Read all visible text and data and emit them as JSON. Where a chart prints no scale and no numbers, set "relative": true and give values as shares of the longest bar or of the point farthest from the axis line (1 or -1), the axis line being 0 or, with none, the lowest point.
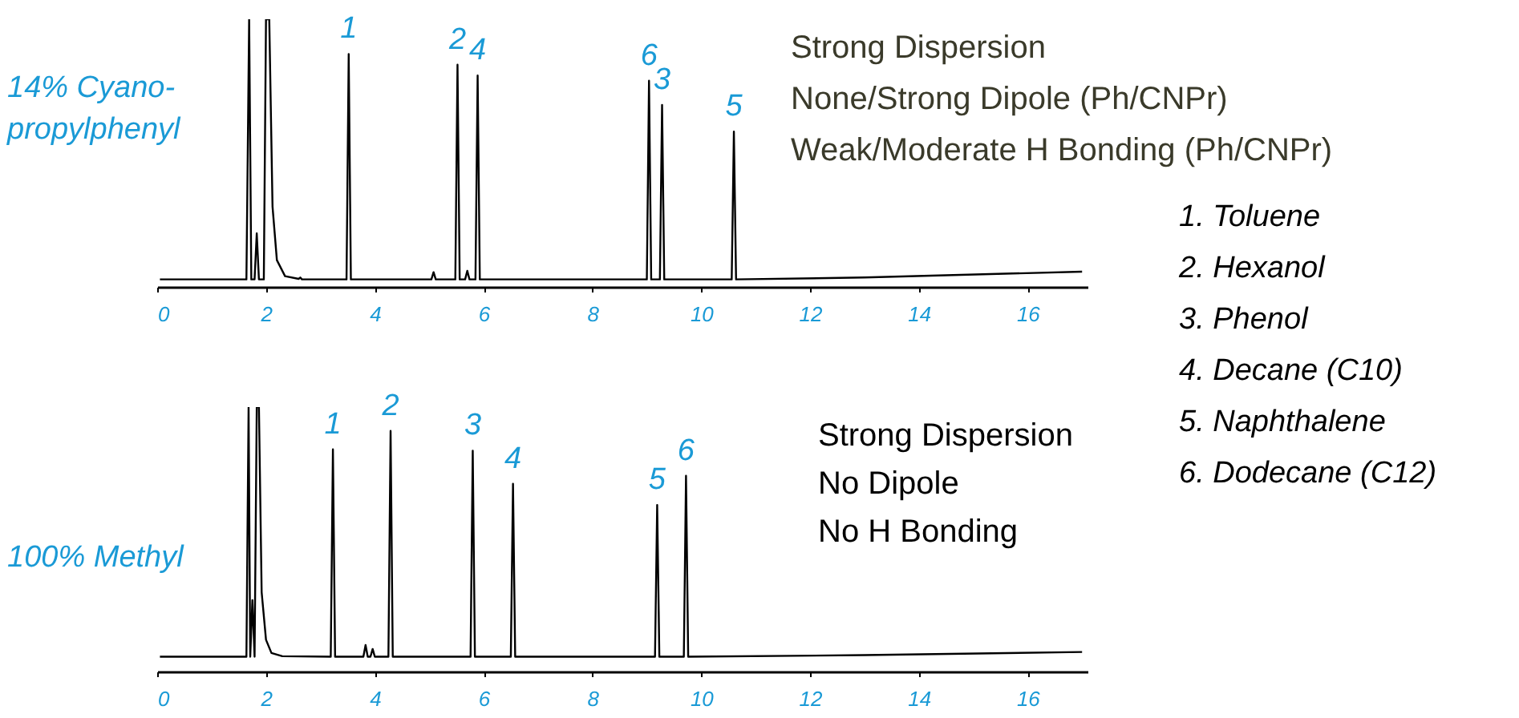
{
  "chart_data": [
    {
      "type": "line",
      "relative": true,
      "ylabel": "14% Cyano-\npropylphenyl",
      "xlim": [
        0,
        17.1
      ],
      "xticks": [
        0,
        2,
        4,
        6,
        8,
        10,
        12,
        14,
        16
      ],
      "grid": false,
      "marker": "none",
      "series": [
        {
          "color": "#000000",
          "x": [
            0.05,
            1.64,
            1.69,
            1.73,
            1.79,
            1.83,
            1.87,
            1.96,
            2.0,
            2.06,
            2.12,
            2.2,
            2.35,
            2.6,
            2.63,
            2.66,
            3.48,
            3.52,
            3.56,
            5.04,
            5.08,
            5.12,
            5.48,
            5.52,
            5.56,
            5.66,
            5.7,
            5.74,
            5.85,
            5.89,
            5.93,
            9.0,
            9.04,
            9.08,
            9.24,
            9.28,
            9.32,
            10.56,
            10.6,
            10.64,
            13,
            17.0
          ],
          "values": [
            0.028,
            0.028,
            1.0,
            0.028,
            0.028,
            0.2,
            0.028,
            0.028,
            1.0,
            1.0,
            0.3,
            0.1,
            0.04,
            0.03,
            0.035,
            0.028,
            0.028,
            0.87,
            0.028,
            0.028,
            0.055,
            0.028,
            0.028,
            0.83,
            0.028,
            0.028,
            0.06,
            0.028,
            0.028,
            0.79,
            0.028,
            0.028,
            0.77,
            0.028,
            0.028,
            0.68,
            0.028,
            0.028,
            0.58,
            0.028,
            0.035,
            0.057
          ]
        }
      ],
      "annotations": [
        {
          "text": "1",
          "x": 3.52,
          "y": 0.87
        },
        {
          "text": "2",
          "x": 5.52,
          "y": 0.83
        },
        {
          "text": "4",
          "x": 5.89,
          "y": 0.79
        },
        {
          "text": "6",
          "x": 9.04,
          "y": 0.77
        },
        {
          "text": "3",
          "x": 9.28,
          "y": 0.68
        },
        {
          "text": "5",
          "x": 10.6,
          "y": 0.58
        },
        "Strong Dispersion",
        "None/Strong Dipole (Ph/CNPr)",
        "Weak/Moderate H Bonding (Ph/CNPr)"
      ]
    },
    {
      "type": "line",
      "relative": true,
      "ylabel": "100% Methyl",
      "xlim": [
        0,
        17.1
      ],
      "xticks": [
        0,
        2,
        4,
        6,
        8,
        10,
        12,
        14,
        16
      ],
      "grid": false,
      "marker": "none",
      "series": [
        {
          "color": "#000000",
          "x": [
            0.05,
            1.64,
            1.68,
            1.71,
            1.75,
            1.79,
            1.83,
            1.87,
            1.92,
            2.0,
            2.1,
            2.3,
            3.19,
            3.23,
            3.27,
            3.79,
            3.83,
            3.87,
            3.92,
            3.96,
            4.0,
            4.25,
            4.29,
            4.33,
            5.76,
            5.8,
            5.84,
            6.5,
            6.54,
            6.58,
            9.15,
            9.19,
            9.23,
            9.68,
            9.72,
            9.76,
            13,
            17.0
          ],
          "values": [
            0.056,
            0.056,
            1.0,
            0.056,
            0.27,
            0.056,
            1.0,
            1.0,
            0.3,
            0.12,
            0.07,
            0.058,
            0.056,
            0.84,
            0.056,
            0.056,
            0.1,
            0.056,
            0.056,
            0.085,
            0.056,
            0.056,
            0.91,
            0.056,
            0.056,
            0.835,
            0.056,
            0.056,
            0.71,
            0.056,
            0.056,
            0.63,
            0.056,
            0.056,
            0.74,
            0.056,
            0.062,
            0.074
          ]
        }
      ],
      "annotations": [
        {
          "text": "1",
          "x": 3.23,
          "y": 0.84
        },
        {
          "text": "2",
          "x": 4.29,
          "y": 0.91
        },
        {
          "text": "3",
          "x": 5.8,
          "y": 0.835
        },
        {
          "text": "4",
          "x": 6.54,
          "y": 0.71
        },
        {
          "text": "5",
          "x": 9.19,
          "y": 0.63
        },
        {
          "text": "6",
          "x": 9.72,
          "y": 0.74
        },
        "Strong Dispersion",
        "No Dipole",
        "No H Bonding"
      ]
    },
    {
      "type": "other",
      "annotations": [
        "1. Toluene",
        "2. Hexanol",
        "3. Phenol",
        "4. Decane (C10)",
        "5. Naphthalene",
        "6. Dodecane (C12)"
      ]
    }
  ]
}
